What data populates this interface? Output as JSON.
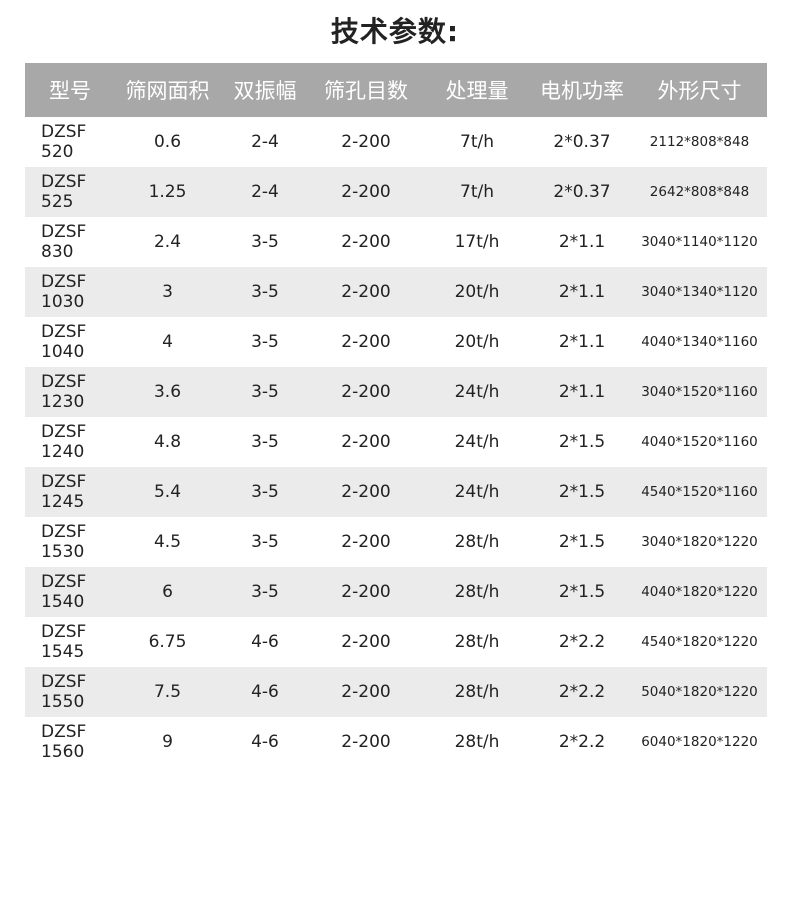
{
  "title": "技术参数:",
  "headers": [
    "型号",
    "筛网面积",
    "双振幅",
    "筛孔目数",
    "处理量",
    "电机功率",
    "外形尺寸"
  ],
  "rows": [
    [
      "DZSF 520",
      "0.6",
      "2-4",
      "2-200",
      "7t/h",
      "2*0.37",
      "2112*808*848"
    ],
    [
      "DZSF 525",
      "1.25",
      "2-4",
      "2-200",
      "7t/h",
      "2*0.37",
      "2642*808*848"
    ],
    [
      "DZSF 830",
      "2.4",
      "3-5",
      "2-200",
      "17t/h",
      "2*1.1",
      "3040*1140*1120"
    ],
    [
      "DZSF 1030",
      "3",
      "3-5",
      "2-200",
      "20t/h",
      "2*1.1",
      "3040*1340*1120"
    ],
    [
      "DZSF 1040",
      "4",
      "3-5",
      "2-200",
      "20t/h",
      "2*1.1",
      "4040*1340*1160"
    ],
    [
      "DZSF 1230",
      "3.6",
      "3-5",
      "2-200",
      "24t/h",
      "2*1.1",
      "3040*1520*1160"
    ],
    [
      "DZSF 1240",
      "4.8",
      "3-5",
      "2-200",
      "24t/h",
      "2*1.5",
      "4040*1520*1160"
    ],
    [
      "DZSF 1245",
      "5.4",
      "3-5",
      "2-200",
      "24t/h",
      "2*1.5",
      "4540*1520*1160"
    ],
    [
      "DZSF 1530",
      "4.5",
      "3-5",
      "2-200",
      "28t/h",
      "2*1.5",
      "3040*1820*1220"
    ],
    [
      "DZSF 1540",
      "6",
      "3-5",
      "2-200",
      "28t/h",
      "2*1.5",
      "4040*1820*1220"
    ],
    [
      "DZSF 1545",
      "6.75",
      "4-6",
      "2-200",
      "28t/h",
      "2*2.2",
      "4540*1820*1220"
    ],
    [
      "DZSF 1550",
      "7.5",
      "4-6",
      "2-200",
      "28t/h",
      "2*2.2",
      "5040*1820*1220"
    ],
    [
      "DZSF 1560",
      "9",
      "4-6",
      "2-200",
      "28t/h",
      "2*2.2",
      "6040*1820*1220"
    ]
  ],
  "colors": {
    "header_bg": "#a8a8a8",
    "stripe_bg": "#ebebeb"
  }
}
